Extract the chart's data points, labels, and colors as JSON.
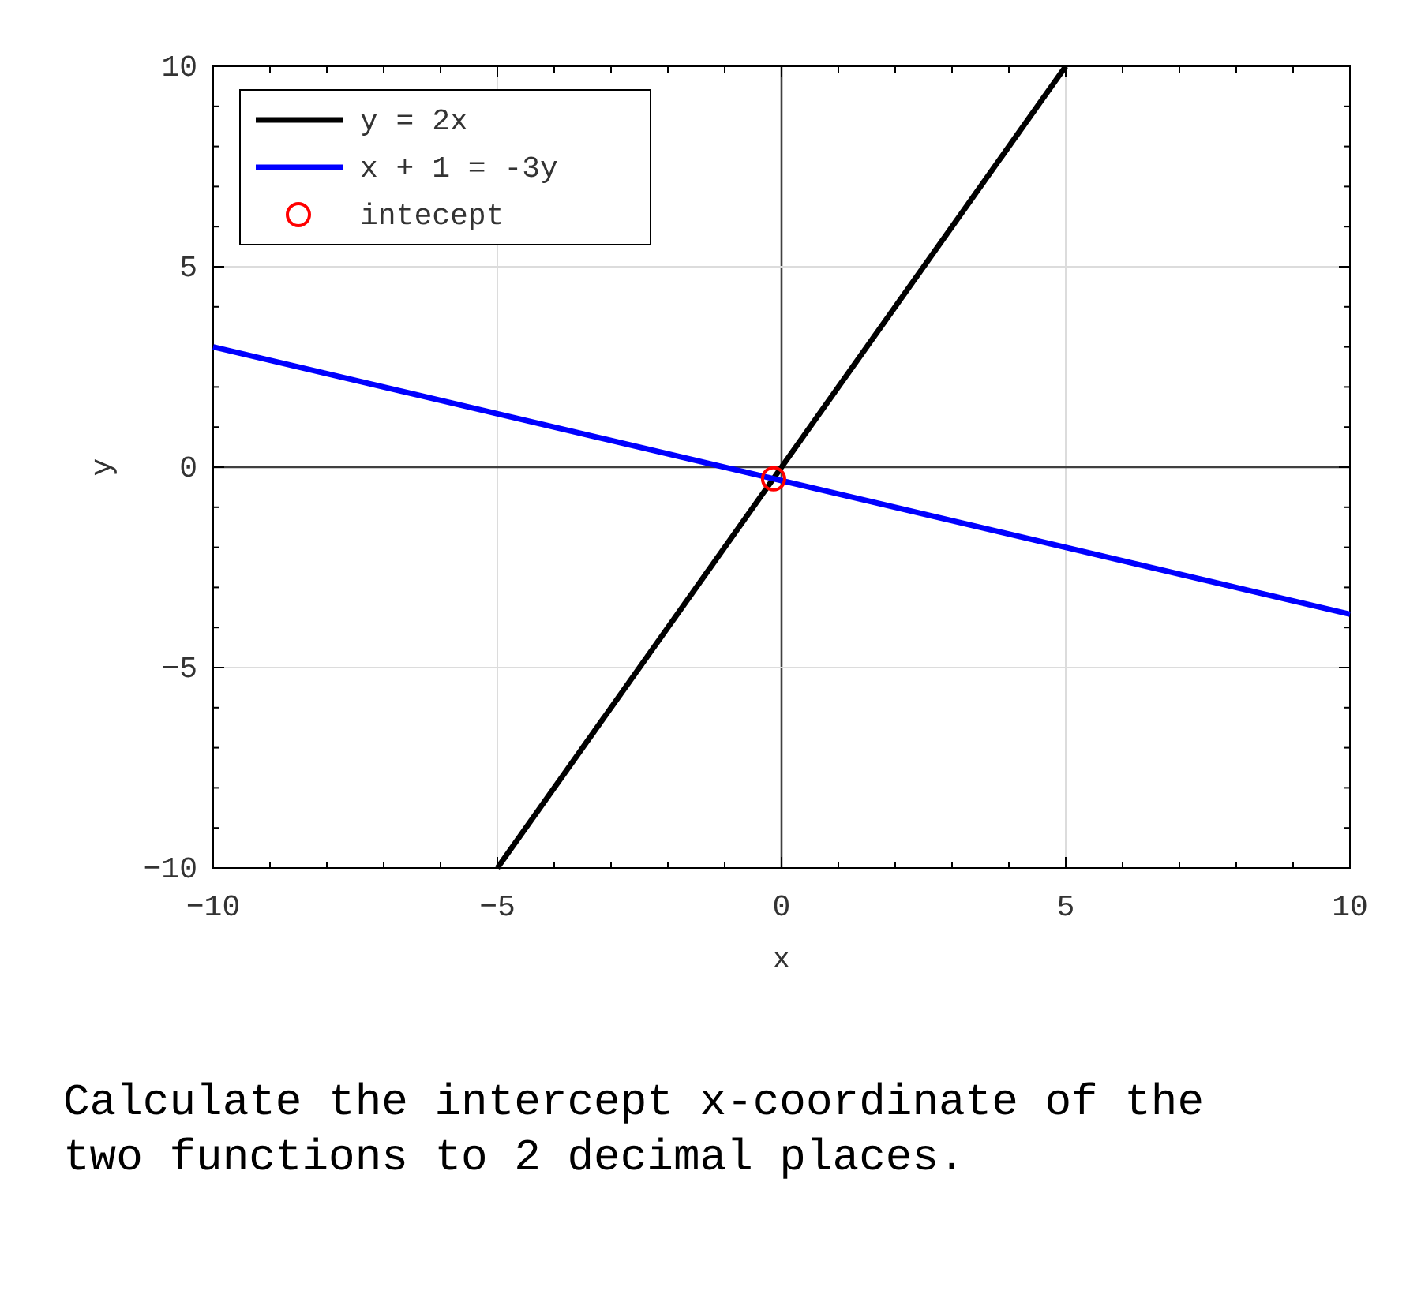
{
  "chart_data": {
    "type": "line",
    "xlabel": "x",
    "ylabel": "y",
    "xlim": [
      -10,
      10
    ],
    "ylim": [
      -10,
      10
    ],
    "xticks": [
      -10,
      {
        "value": -9,
        "label": null
      },
      {
        "value": -8,
        "label": null
      },
      {
        "value": -7,
        "label": null
      },
      {
        "value": -6,
        "label": null
      },
      -5,
      {
        "value": -4,
        "label": null
      },
      {
        "value": -3,
        "label": null
      },
      {
        "value": -2,
        "label": null
      },
      {
        "value": -1,
        "label": null
      },
      0,
      {
        "value": 1,
        "label": null
      },
      {
        "value": 2,
        "label": null
      },
      {
        "value": 3,
        "label": null
      },
      {
        "value": 4,
        "label": null
      },
      5,
      {
        "value": 6,
        "label": null
      },
      {
        "value": 7,
        "label": null
      },
      {
        "value": 8,
        "label": null
      },
      {
        "value": 9,
        "label": null
      },
      10
    ],
    "yticks": [
      -10,
      {
        "value": -9,
        "label": null
      },
      {
        "value": -8,
        "label": null
      },
      {
        "value": -7,
        "label": null
      },
      {
        "value": -6,
        "label": null
      },
      -5,
      {
        "value": -4,
        "label": null
      },
      {
        "value": -3,
        "label": null
      },
      {
        "value": -2,
        "label": null
      },
      {
        "value": -1,
        "label": null
      },
      0,
      {
        "value": 1,
        "label": null
      },
      {
        "value": 2,
        "label": null
      },
      {
        "value": 3,
        "label": null
      },
      {
        "value": 4,
        "label": null
      },
      5,
      {
        "value": 6,
        "label": null
      },
      {
        "value": 7,
        "label": null
      },
      {
        "value": 8,
        "label": null
      },
      {
        "value": 9,
        "label": null
      },
      10
    ],
    "grid": true,
    "legend": "top left",
    "series": [
      {
        "name": "y = 2x",
        "color": "#000000",
        "x": [
          -5,
          5
        ],
        "values": [
          -10,
          10
        ]
      },
      {
        "name": "x + 1 = -3y",
        "color": "#0000ff",
        "x": [
          -10,
          10
        ],
        "values": [
          3,
          -3.67
        ]
      },
      {
        "name": "intecept",
        "color": "#ff0000",
        "type": "scatter",
        "marker": "circle",
        "x": [
          -0.14
        ],
        "values": [
          -0.29
        ]
      }
    ],
    "annotations": [
      "Calculate the intercept x-coordinate of the two functions to 2 decimal places."
    ]
  }
}
